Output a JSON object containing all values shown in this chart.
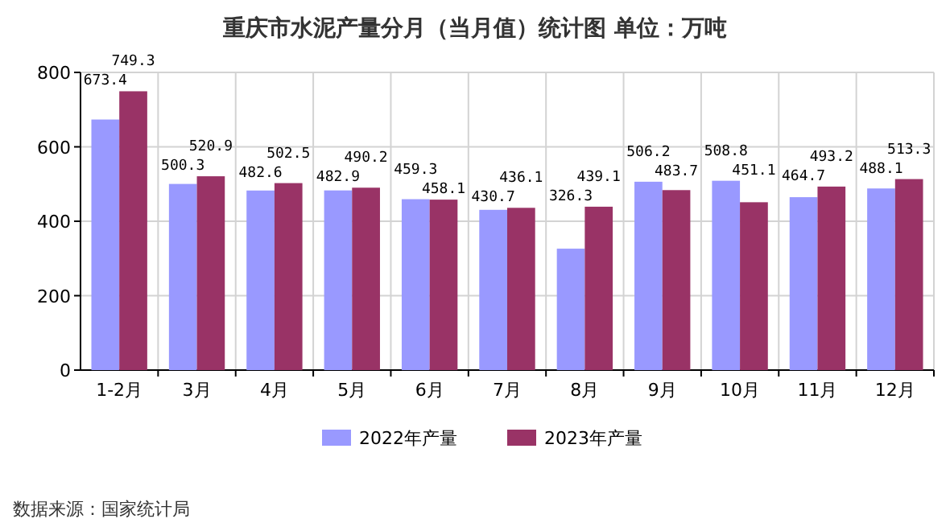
{
  "chart_data": {
    "type": "bar",
    "title": "重庆市水泥产量分月（当月值）统计图  单位：万吨",
    "categories": [
      "1-2月",
      "3月",
      "4月",
      "5月",
      "6月",
      "7月",
      "8月",
      "9月",
      "10月",
      "11月",
      "12月"
    ],
    "series": [
      {
        "name": "2022年产量",
        "color": "#9999ff",
        "values": [
          673.4,
          500.3,
          482.6,
          482.9,
          459.3,
          430.7,
          326.3,
          506.2,
          508.8,
          464.7,
          488.1
        ]
      },
      {
        "name": "2023年产量",
        "color": "#993366",
        "values": [
          749.3,
          520.9,
          502.5,
          490.2,
          458.1,
          436.1,
          439.1,
          483.7,
          451.1,
          493.2,
          513.3
        ]
      }
    ],
    "ylim": [
      0,
      800
    ],
    "yticks": [
      0,
      200,
      400,
      600,
      800
    ],
    "grid": true,
    "legend": "bottom",
    "data_labels": true,
    "annotations": [
      "数据来源：国家统计局"
    ]
  }
}
